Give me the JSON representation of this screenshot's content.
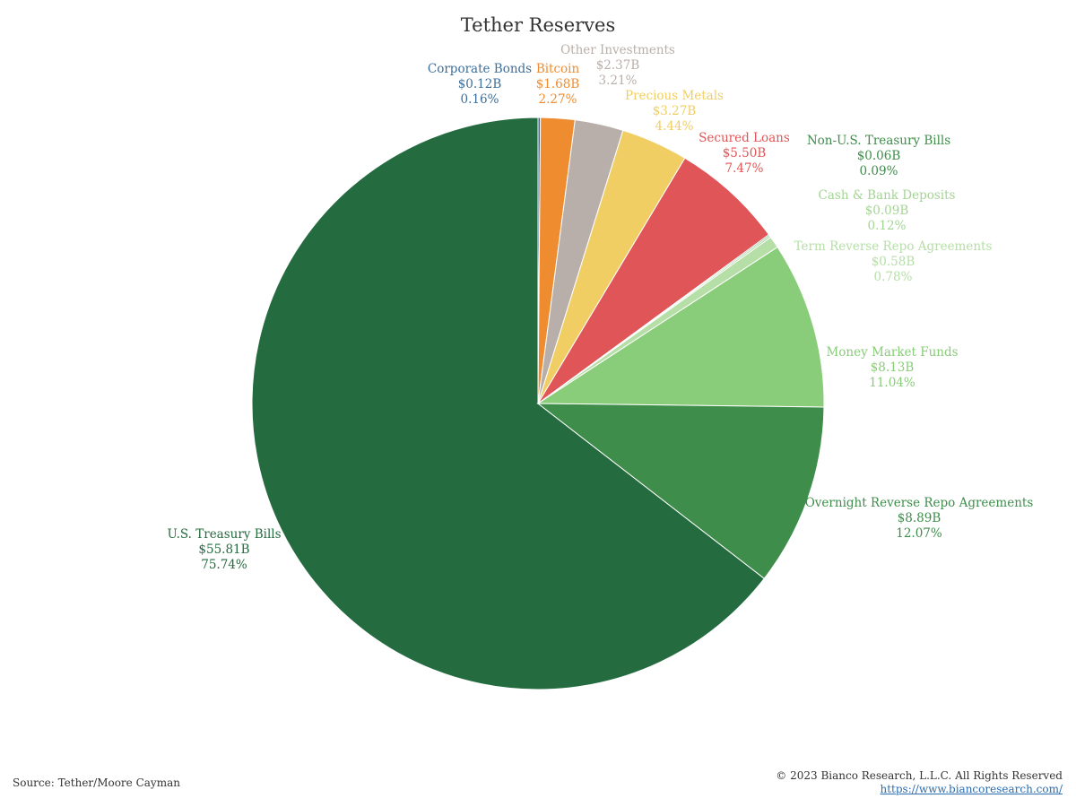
{
  "chart_data": {
    "type": "pie",
    "title": "Tether Reserves",
    "slices": [
      {
        "label": "U.S. Treasury Bills",
        "amount": "$55.81B",
        "percent": "75.74%",
        "value": 75.74,
        "color": "#246b3f"
      },
      {
        "label": "Corporate Bonds",
        "amount": "$0.12B",
        "percent": "0.16%",
        "value": 0.16,
        "color": "#3c6e9a"
      },
      {
        "label": "Bitcoin",
        "amount": "$1.68B",
        "percent": "2.27%",
        "value": 2.27,
        "color": "#f08c30"
      },
      {
        "label": "Other Investments",
        "amount": "$2.37B",
        "percent": "3.21%",
        "value": 3.21,
        "color": "#b9afaa"
      },
      {
        "label": "Precious Metals",
        "amount": "$3.27B",
        "percent": "4.44%",
        "value": 4.44,
        "color": "#f0ce64"
      },
      {
        "label": "Secured Loans",
        "amount": "$5.50B",
        "percent": "7.47%",
        "value": 7.47,
        "color": "#e05557"
      },
      {
        "label": "Non-U.S. Treasury Bills",
        "amount": "$0.06B",
        "percent": "0.09%",
        "value": 0.09,
        "color": "#3e8d4b"
      },
      {
        "label": "Cash & Bank Deposits",
        "amount": "$0.09B",
        "percent": "0.12%",
        "value": 0.12,
        "color": "#a4d494"
      },
      {
        "label": "Term Reverse Repo Agreements",
        "amount": "$0.58B",
        "percent": "0.78%",
        "value": 0.78,
        "color": "#b6dea7"
      },
      {
        "label": "Money Market Funds",
        "amount": "$8.13B",
        "percent": "11.04%",
        "value": 11.04,
        "color": "#89cc79"
      },
      {
        "label": "Overnight Reverse Repo Agreements",
        "amount": "$8.89B",
        "percent": "12.07%",
        "value": 12.07,
        "color": "#3e8d4b"
      }
    ]
  },
  "footer": {
    "source": "Source: Tether/Moore Cayman",
    "copyright": "© 2023 Bianco Research, L.L.C. All Rights Reserved",
    "url": "https://www.biancoresearch.com/"
  }
}
